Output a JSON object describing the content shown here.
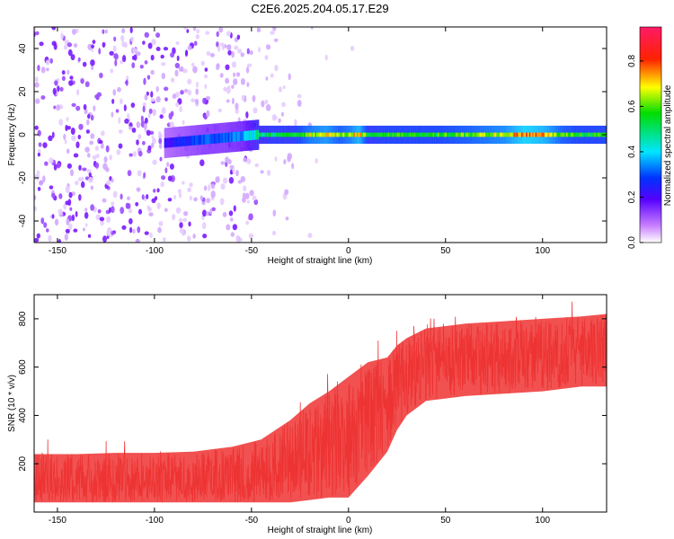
{
  "title": "C2E6.2025.204.05.17.E29",
  "chart_data": [
    {
      "type": "heatmap",
      "xlabel": "Height of straight line (km)",
      "ylabel": "Frequency (Hz)",
      "xlim": [
        -162,
        133
      ],
      "ylim": [
        -50,
        50
      ],
      "xticks": [
        -150,
        -100,
        -50,
        0,
        50,
        100
      ],
      "yticks": [
        -40,
        -20,
        0,
        20,
        40
      ],
      "colorbar": {
        "label": "Normalized spectral amplitude",
        "range": [
          0,
          0.95
        ],
        "ticks": [
          0.0,
          0.2,
          0.4,
          0.6,
          0.8
        ]
      },
      "band_amplitude_profile": {
        "x": [
          -95,
          -85,
          -75,
          -65,
          -55,
          -47,
          -40,
          -30,
          -20,
          -12,
          -5,
          0,
          5,
          10,
          20,
          40,
          60,
          80,
          90,
          100,
          110,
          120,
          133
        ],
        "values": [
          0.25,
          0.3,
          0.35,
          0.35,
          0.4,
          0.55,
          0.6,
          0.6,
          0.75,
          0.8,
          0.7,
          0.75,
          0.85,
          0.6,
          0.65,
          0.65,
          0.7,
          0.78,
          0.9,
          0.85,
          0.7,
          0.65,
          0.65
        ]
      }
    },
    {
      "type": "line",
      "xlabel": "Height of straight line (km)",
      "ylabel": "SNR (10 * v/v)",
      "xlim": [
        -162,
        133
      ],
      "ylim": [
        0,
        900
      ],
      "xticks": [
        -150,
        -100,
        -50,
        0,
        50,
        100
      ],
      "yticks": [
        200,
        400,
        600,
        800
      ],
      "series": [
        {
          "color": "#ee3333",
          "envelope": {
            "x": [
              -162,
              -140,
              -120,
              -100,
              -80,
              -60,
              -45,
              -30,
              -20,
              -10,
              0,
              10,
              20,
              25,
              30,
              40,
              60,
              80,
              100,
              120,
              133
            ],
            "low": [
              40,
              40,
              40,
              40,
              40,
              40,
              40,
              40,
              50,
              60,
              60,
              150,
              250,
              340,
              400,
              460,
              480,
              490,
              500,
              520,
              520
            ],
            "high": [
              240,
              240,
              245,
              245,
              250,
              270,
              300,
              380,
              450,
              500,
              560,
              620,
              640,
              690,
              720,
              760,
              780,
              790,
              800,
              810,
              820
            ],
            "mean": [
              110,
              112,
              115,
              118,
              120,
              125,
              140,
              170,
              220,
              270,
              310,
              400,
              500,
              560,
              590,
              620,
              640,
              650,
              660,
              680,
              690
            ]
          }
        }
      ]
    }
  ]
}
